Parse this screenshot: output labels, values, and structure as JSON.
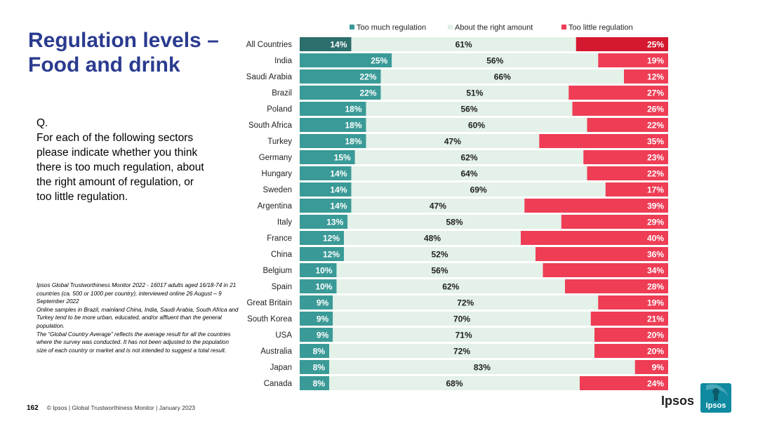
{
  "title": "Regulation levels –\nFood and drink",
  "question": {
    "label": "Q.",
    "text": "For each of the following sectors please indicate whether you think there is too much regulation, about the right amount of regulation, or too little regulation."
  },
  "footnote": [
    "Ipsos Global Trustworthiness Monitor 2022 - 16017 adults aged 16/18-74 in 21 countries (ca. 500 or 1000 per country), interviewed online 26 August – 9 September 2022",
    "Online samples in Brazil, mainland China, India, Saudi Arabia, South Africa and Turkey tend to be more urban, educated, and/or affluent than the general population.",
    "The “Global Country Average” reflects the average result for all the countries where the survey was conducted. It has not been adjusted to the population size of each country or market and is not intended to suggest a total result."
  ],
  "footer": {
    "page_number": "162",
    "text": "© Ipsos | Global Trustworthiness Monitor | January 2023"
  },
  "brand": {
    "wordmark": "Ipsos",
    "logo_text": "Ipsos"
  },
  "colors": {
    "too_much": "#3a9a97",
    "too_much_highlight": "#2c6e6b",
    "about_right": "#e3f1e8",
    "too_little": "#ee3d55",
    "too_little_highlight": "#d4182f",
    "title": "#2a3b8f",
    "logo_bg": "#0f8aa0"
  },
  "chart_data": {
    "type": "bar",
    "orientation": "horizontal",
    "stacked": true,
    "legend_position": "top",
    "categories": [
      "All Countries",
      "India",
      "Saudi Arabia",
      "Brazil",
      "Poland",
      "South Africa",
      "Turkey",
      "Germany",
      "Hungary",
      "Sweden",
      "Argentina",
      "Italy",
      "France",
      "China",
      "Belgium",
      "Spain",
      "Great Britain",
      "South Korea",
      "USA",
      "Australia",
      "Japan",
      "Canada"
    ],
    "series": [
      {
        "name": "Too much regulation",
        "values": [
          14,
          25,
          22,
          22,
          18,
          18,
          18,
          15,
          14,
          14,
          14,
          13,
          12,
          12,
          10,
          10,
          9,
          9,
          9,
          8,
          8,
          8
        ]
      },
      {
        "name": "About the right amount",
        "values": [
          61,
          56,
          66,
          51,
          56,
          60,
          47,
          62,
          64,
          69,
          47,
          58,
          48,
          52,
          56,
          62,
          72,
          70,
          71,
          72,
          83,
          68
        ]
      },
      {
        "name": "Too little regulation",
        "values": [
          25,
          19,
          12,
          27,
          26,
          22,
          35,
          23,
          22,
          17,
          39,
          29,
          40,
          36,
          34,
          28,
          19,
          21,
          20,
          20,
          9,
          24
        ]
      }
    ],
    "value_suffix": "%"
  }
}
